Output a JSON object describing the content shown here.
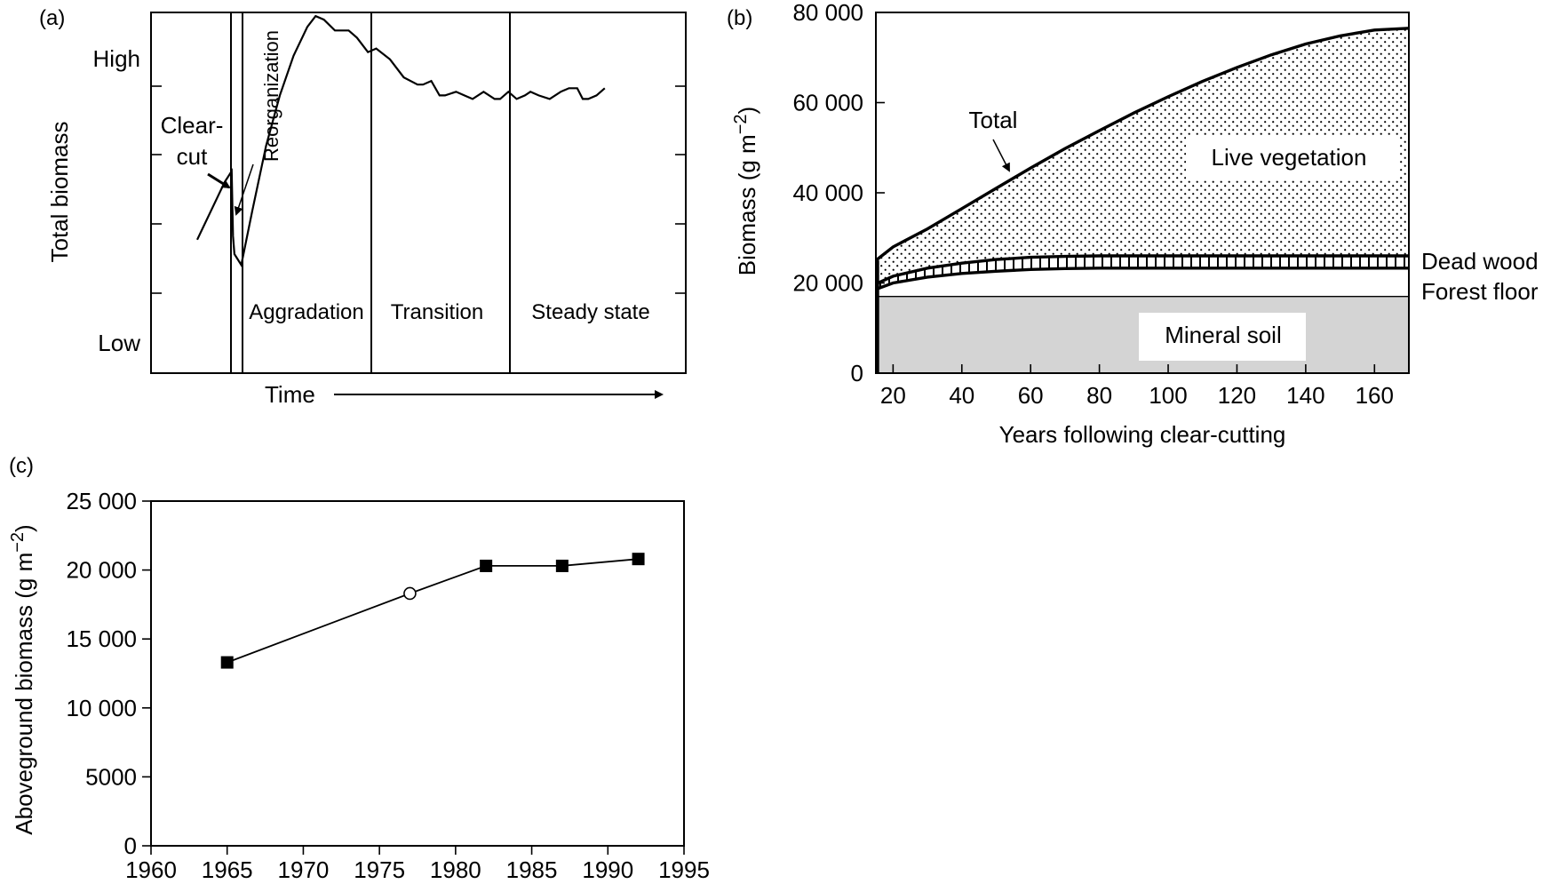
{
  "chart_data": [
    {
      "panel": "(a)",
      "type": "line",
      "xlabel": "Time",
      "ylabel": "Total biomass",
      "yticks": [
        "High",
        "Low"
      ],
      "phases": [
        "Aggradation",
        "Transition",
        "Steady state"
      ],
      "annotations": [
        "Clear-",
        "cut",
        "Reorganization"
      ],
      "series": [
        {
          "x": [
            0.0,
            0.05,
            0.1,
            0.125,
            0.13,
            0.135,
            0.16,
            0.2,
            0.25,
            0.3,
            0.35,
            0.4,
            0.43,
            0.46,
            0.5,
            0.55,
            0.58,
            0.62,
            0.65,
            0.7,
            0.75,
            0.8,
            0.82,
            0.85,
            0.88,
            0.9,
            0.94,
            0.97,
            1.0,
            1.04,
            1.08,
            1.1,
            1.13,
            1.16,
            1.19,
            1.21,
            1.24,
            1.28,
            1.32,
            1.35,
            1.38,
            1.4,
            1.42,
            1.45,
            1.48
          ],
          "y": [
            0.37,
            0.45,
            0.53,
            0.56,
            0.38,
            0.33,
            0.3,
            0.45,
            0.63,
            0.77,
            0.88,
            0.96,
            0.99,
            0.98,
            0.95,
            0.95,
            0.93,
            0.89,
            0.9,
            0.87,
            0.82,
            0.8,
            0.8,
            0.81,
            0.77,
            0.77,
            0.78,
            0.77,
            0.76,
            0.78,
            0.76,
            0.76,
            0.78,
            0.76,
            0.77,
            0.78,
            0.77,
            0.76,
            0.78,
            0.79,
            0.79,
            0.76,
            0.76,
            0.77,
            0.79
          ]
        }
      ]
    },
    {
      "panel": "(b)",
      "type": "area",
      "xlabel": "Years following clear-cutting",
      "ylabel": "Biomass (g m",
      "ylabel_sup": "−2",
      "ylabel_close": ")",
      "xlim": [
        15,
        170
      ],
      "ylim": [
        0,
        80000
      ],
      "xticks": [
        20,
        40,
        60,
        80,
        100,
        120,
        140,
        160
      ],
      "yticks": [
        0,
        20000,
        40000,
        60000,
        80000
      ],
      "ytick_labels": [
        "0",
        "20 000",
        "40 000",
        "60 000",
        "80 000"
      ],
      "x": [
        15,
        20,
        30,
        40,
        50,
        60,
        70,
        80,
        90,
        100,
        110,
        120,
        130,
        140,
        150,
        160,
        170
      ],
      "series": [
        {
          "name": "Total",
          "values": [
            25000,
            28000,
            32000,
            36500,
            41000,
            45500,
            49800,
            53800,
            57700,
            61300,
            64700,
            67800,
            70600,
            73000,
            74800,
            76100,
            76500
          ]
        },
        {
          "name": "Dead wood",
          "values": [
            19800,
            21500,
            23300,
            24400,
            25200,
            25700,
            25900,
            26000,
            26000,
            26000,
            26000,
            26000,
            26000,
            26000,
            26000,
            26000,
            26000
          ]
        },
        {
          "name": "Forest floor",
          "values": [
            18600,
            20000,
            21300,
            22100,
            22600,
            23000,
            23200,
            23300,
            23300,
            23300,
            23300,
            23300,
            23300,
            23300,
            23300,
            23300,
            23300
          ]
        },
        {
          "name": "Mineral soil",
          "values": [
            17000,
            17000,
            17000,
            17000,
            17000,
            17000,
            17000,
            17000,
            17000,
            17000,
            17000,
            17000,
            17000,
            17000,
            17000,
            17000,
            17000
          ]
        }
      ],
      "region_labels": [
        "Live vegetation",
        "Mineral soil"
      ]
    },
    {
      "panel": "(c)",
      "type": "scatter",
      "xlabel": "",
      "ylabel": "Aboveground biomass (g m",
      "ylabel_sup": "−2",
      "ylabel_close": ")",
      "xlim": [
        1960,
        1995
      ],
      "ylim": [
        0,
        25000
      ],
      "xticks": [
        1960,
        1965,
        1970,
        1975,
        1980,
        1985,
        1990,
        1995
      ],
      "yticks": [
        0,
        5000,
        10000,
        15000,
        20000,
        25000
      ],
      "ytick_labels": [
        "0",
        "5000",
        "10 000",
        "15 000",
        "20 000",
        "25 000"
      ],
      "points": [
        {
          "x": 1965,
          "y": 13300,
          "marker": "filled-square"
        },
        {
          "x": 1977,
          "y": 18300,
          "marker": "open-circle"
        },
        {
          "x": 1982,
          "y": 20300,
          "marker": "filled-square"
        },
        {
          "x": 1987,
          "y": 20300,
          "marker": "filled-square"
        },
        {
          "x": 1992,
          "y": 20800,
          "marker": "filled-square"
        }
      ]
    }
  ]
}
